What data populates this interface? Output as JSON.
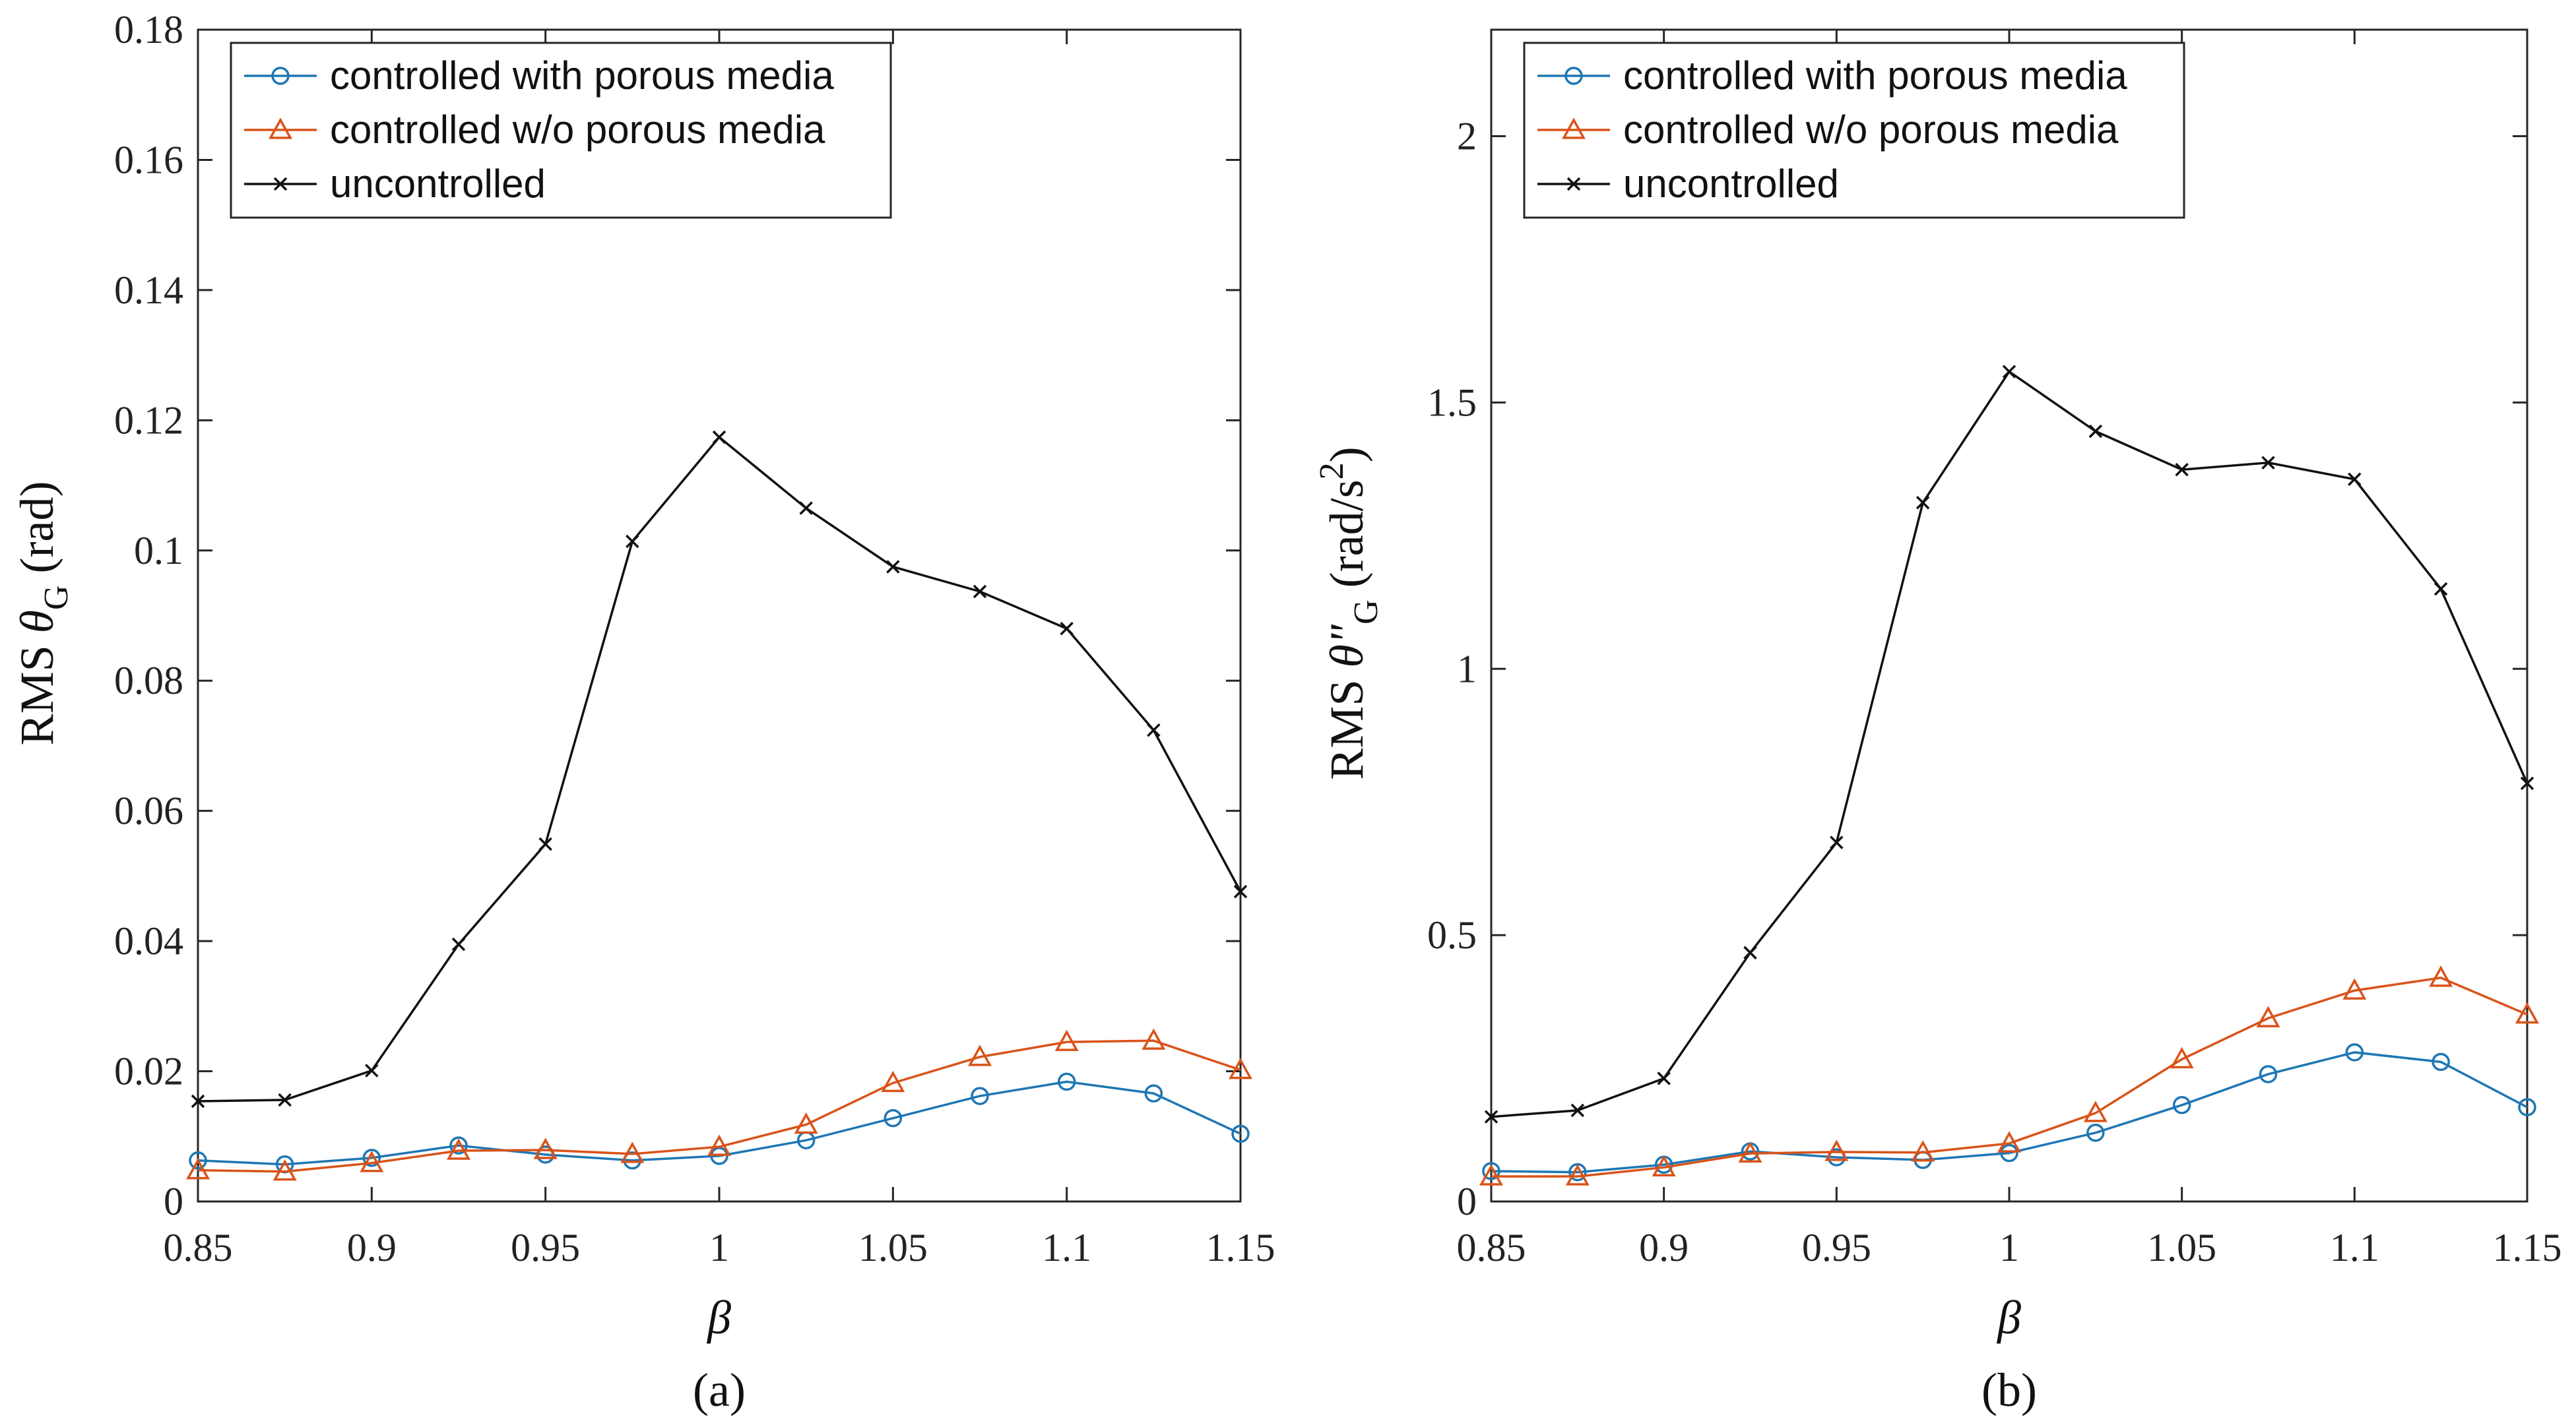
{
  "chart_data": [
    {
      "type": "line",
      "panel_label": "(a)",
      "xlabel": "β",
      "ylabel": {
        "prefix": "RMS ",
        "symbol": "θ",
        "sub": "G",
        "suffix": " (rad)"
      },
      "xlim": [
        0.85,
        1.15
      ],
      "ylim": [
        0,
        0.18
      ],
      "xticks": [
        0.85,
        0.9,
        0.95,
        1,
        1.05,
        1.1,
        1.15
      ],
      "xtick_labels": [
        "0.85",
        "0.9",
        "0.95",
        "1",
        "1.05",
        "1.1",
        "1.15"
      ],
      "yticks": [
        0,
        0.02,
        0.04,
        0.06,
        0.08,
        0.1,
        0.12,
        0.14,
        0.16,
        0.18
      ],
      "ytick_labels": [
        "0",
        "0.02",
        "0.04",
        "0.06",
        "0.08",
        "0.1",
        "0.12",
        "0.14",
        "0.16",
        "0.18"
      ],
      "x": [
        0.85,
        0.875,
        0.9,
        0.925,
        0.95,
        0.975,
        1.0,
        1.025,
        1.05,
        1.075,
        1.1,
        1.125,
        1.15
      ],
      "legend_position": "top-left",
      "series": [
        {
          "name": "controlled with porous media",
          "marker": "circle",
          "color": "#1f77b4",
          "values": [
            0.0063,
            0.0057,
            0.0067,
            0.0086,
            0.0072,
            0.0063,
            0.007,
            0.0094,
            0.0128,
            0.0162,
            0.0184,
            0.0166,
            0.0104
          ]
        },
        {
          "name": "controlled w/o porous media",
          "marker": "triangle",
          "color": "#d95319",
          "values": [
            0.0048,
            0.0046,
            0.0059,
            0.0078,
            0.0079,
            0.0073,
            0.0084,
            0.0118,
            0.0182,
            0.0222,
            0.0245,
            0.0247,
            0.0202
          ]
        },
        {
          "name": "uncontrolled",
          "marker": "x",
          "color": "#111111",
          "values": [
            0.0154,
            0.0156,
            0.0201,
            0.0395,
            0.0549,
            0.1014,
            0.1174,
            0.1065,
            0.0975,
            0.0937,
            0.088,
            0.0724,
            0.0476
          ]
        }
      ]
    },
    {
      "type": "line",
      "panel_label": "(b)",
      "xlabel": "β",
      "ylabel": {
        "prefix": "RMS ",
        "symbol": "θ\"",
        "sub": "G",
        "suffix": " (rad/s",
        "sup": "2",
        "end": ")"
      },
      "xlim": [
        0.85,
        1.15
      ],
      "ylim": [
        0,
        2.2
      ],
      "xticks": [
        0.85,
        0.9,
        0.95,
        1,
        1.05,
        1.1,
        1.15
      ],
      "xtick_labels": [
        "0.85",
        "0.9",
        "0.95",
        "1",
        "1.05",
        "1.1",
        "1.15"
      ],
      "yticks": [
        0,
        0.5,
        1,
        1.5,
        2
      ],
      "ytick_labels": [
        "0",
        "0.5",
        "1",
        "1.5",
        "2"
      ],
      "x": [
        0.85,
        0.875,
        0.9,
        0.925,
        0.95,
        0.975,
        1.0,
        1.025,
        1.05,
        1.075,
        1.1,
        1.125,
        1.15
      ],
      "legend_position": "top-left",
      "series": [
        {
          "name": "controlled with porous media",
          "marker": "circle",
          "color": "#1f77b4",
          "values": [
            0.057,
            0.055,
            0.069,
            0.094,
            0.083,
            0.078,
            0.091,
            0.129,
            0.181,
            0.239,
            0.28,
            0.262,
            0.177
          ]
        },
        {
          "name": "controlled w/o porous media",
          "marker": "triangle",
          "color": "#d95319",
          "values": [
            0.047,
            0.047,
            0.064,
            0.09,
            0.093,
            0.092,
            0.109,
            0.166,
            0.267,
            0.344,
            0.396,
            0.42,
            0.351
          ]
        },
        {
          "name": "uncontrolled",
          "marker": "x",
          "color": "#111111",
          "values": [
            0.159,
            0.171,
            0.231,
            0.467,
            0.674,
            1.312,
            1.558,
            1.446,
            1.374,
            1.387,
            1.356,
            1.15,
            0.785
          ]
        }
      ]
    }
  ]
}
